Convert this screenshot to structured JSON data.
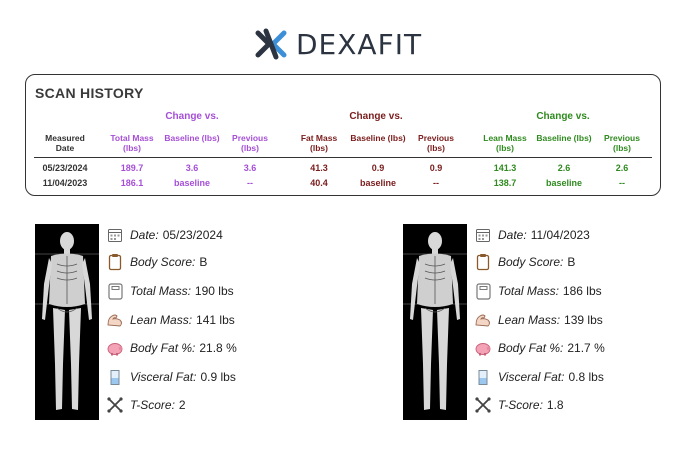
{
  "logo": {
    "left": "DEXA",
    "right": "FIT"
  },
  "scan_history": {
    "title": "SCAN HISTORY",
    "group_change": "Change vs.",
    "columns": {
      "date": "Measured Date",
      "total_mass": "Total Mass (lbs)",
      "tm_baseline": "Baseline (lbs)",
      "tm_previous": "Previous (lbs)",
      "fat_mass": "Fat Mass (lbs)",
      "fm_baseline": "Baseline (lbs)",
      "fm_previous": "Previous (lbs)",
      "lean_mass": "Lean Mass (lbs)",
      "lm_baseline": "Baseline (lbs)",
      "lm_previous": "Previous (lbs)"
    },
    "rows": [
      {
        "date": "05/23/2024",
        "total_mass": "189.7",
        "tm_baseline": "3.6",
        "tm_previous": "3.6",
        "fat_mass": "41.3",
        "fm_baseline": "0.9",
        "fm_previous": "0.9",
        "lean_mass": "141.3",
        "lm_baseline": "2.6",
        "lm_previous": "2.6"
      },
      {
        "date": "11/04/2023",
        "total_mass": "186.1",
        "tm_baseline": "baseline",
        "tm_previous": "--",
        "fat_mass": "40.4",
        "fm_baseline": "baseline",
        "fm_previous": "--",
        "lean_mass": "138.7",
        "lm_baseline": "baseline",
        "lm_previous": "--"
      }
    ]
  },
  "scans": [
    {
      "date_label": "Date:",
      "date": "05/23/2024",
      "body_score_label": "Body Score:",
      "body_score": "B",
      "total_mass_label": "Total Mass:",
      "total_mass": "190 lbs",
      "lean_mass_label": "Lean Mass:",
      "lean_mass": "141 lbs",
      "body_fat_label": "Body Fat %:",
      "body_fat": "21.8 %",
      "visceral_fat_label": "Visceral Fat:",
      "visceral_fat": "0.9 lbs",
      "t_score_label": "T-Score:",
      "t_score": "2"
    },
    {
      "date_label": "Date:",
      "date": "11/04/2023",
      "body_score_label": "Body Score:",
      "body_score": "B",
      "total_mass_label": "Total Mass:",
      "total_mass": "186 lbs",
      "lean_mass_label": "Lean Mass:",
      "lean_mass": "139 lbs",
      "body_fat_label": "Body Fat %:",
      "body_fat": "21.7 %",
      "visceral_fat_label": "Visceral Fat:",
      "visceral_fat": "0.8 lbs",
      "t_score_label": "T-Score:",
      "t_score": "1.8"
    }
  ],
  "colors": {
    "purple": "#a64fd6",
    "maroon": "#7a1c1c",
    "green": "#2f8a1f",
    "logo_blue": "#3d8fd8"
  }
}
